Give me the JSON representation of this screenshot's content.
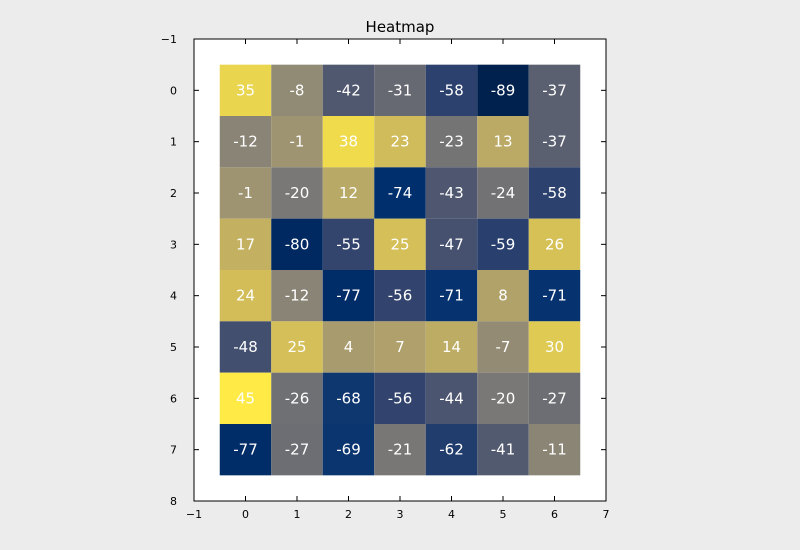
{
  "chart_data": {
    "type": "heatmap",
    "title": "Heatmap",
    "colormap": "cividis",
    "vmin": -89,
    "vmax": 45,
    "xlim": [
      -1,
      7
    ],
    "ylim": [
      8,
      -1
    ],
    "x_ticks": [
      "−1",
      "0",
      "1",
      "2",
      "3",
      "4",
      "5",
      "6",
      "7"
    ],
    "y_ticks": [
      "−1",
      "0",
      "1",
      "2",
      "3",
      "4",
      "5",
      "6",
      "7",
      "8"
    ],
    "rows": [
      0,
      1,
      2,
      3,
      4,
      5,
      6,
      7
    ],
    "cols": [
      0,
      1,
      2,
      3,
      4,
      5,
      6
    ],
    "values": [
      [
        35,
        -8,
        -42,
        -31,
        -58,
        -89,
        -37
      ],
      [
        -12,
        -1,
        38,
        23,
        -23,
        13,
        -37
      ],
      [
        -1,
        -20,
        12,
        -74,
        -43,
        -24,
        -58
      ],
      [
        17,
        -80,
        -55,
        25,
        -47,
        -59,
        26
      ],
      [
        24,
        -12,
        -77,
        -56,
        -71,
        8,
        -71
      ],
      [
        -48,
        25,
        4,
        7,
        14,
        -7,
        30
      ],
      [
        45,
        -26,
        -68,
        -56,
        -44,
        -20,
        -27
      ],
      [
        -77,
        -27,
        -69,
        -21,
        -62,
        -41,
        -11
      ]
    ]
  }
}
